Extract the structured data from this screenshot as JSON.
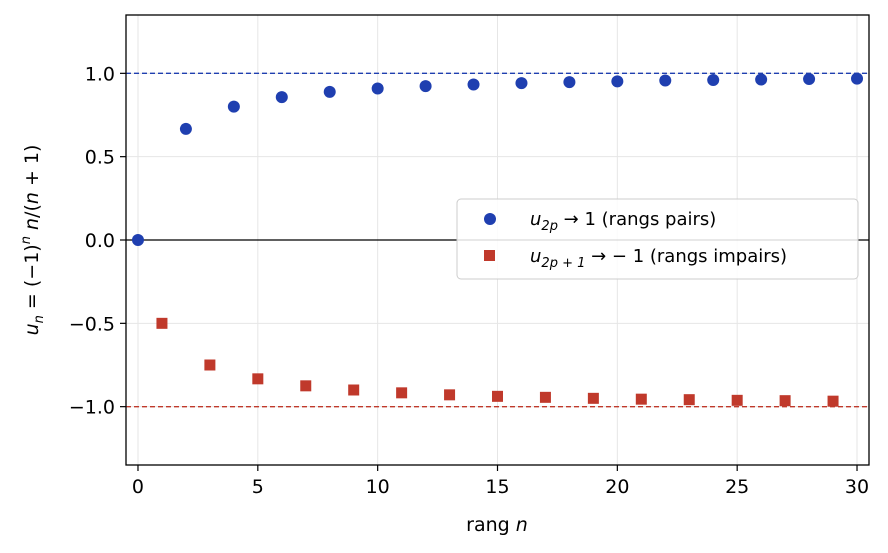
{
  "chart_data": {
    "type": "scatter",
    "xlabel": "rang n",
    "ylabel": "u_n = (−1)^n n/(n+1)",
    "xlim": [
      -0.5,
      30.5
    ],
    "ylim": [
      -1.35,
      1.35
    ],
    "xticks": [
      0,
      5,
      10,
      15,
      20,
      25,
      30
    ],
    "xtick_labels": [
      "0",
      "5",
      "10",
      "15",
      "20",
      "25",
      "30"
    ],
    "yticks": [
      -1.0,
      -0.5,
      0.0,
      0.5,
      1.0
    ],
    "ytick_labels": [
      "−1.0",
      "−0.5",
      "0.0",
      "0.5",
      "1.0"
    ],
    "grid": true,
    "legend_position": "right",
    "series": [
      {
        "name": "u_2p → 1 (rangs pairs)",
        "marker": "circle",
        "color": "#1f3fb0",
        "x": [
          0,
          2,
          4,
          6,
          8,
          10,
          12,
          14,
          16,
          18,
          20,
          22,
          24,
          26,
          28,
          30
        ],
        "y": [
          0.0,
          0.667,
          0.8,
          0.857,
          0.889,
          0.909,
          0.923,
          0.933,
          0.941,
          0.947,
          0.952,
          0.957,
          0.96,
          0.963,
          0.966,
          0.968
        ]
      },
      {
        "name": "u_2p+1 → −1 (rangs impairs)",
        "marker": "square",
        "color": "#c0392b",
        "x": [
          1,
          3,
          5,
          7,
          9,
          11,
          13,
          15,
          17,
          19,
          21,
          23,
          25,
          27,
          29
        ],
        "y": [
          -0.5,
          -0.75,
          -0.833,
          -0.875,
          -0.9,
          -0.917,
          -0.929,
          -0.938,
          -0.944,
          -0.95,
          -0.955,
          -0.958,
          -0.962,
          -0.964,
          -0.967
        ]
      }
    ],
    "reference_lines": [
      {
        "y": 1.0,
        "color": "#1f3fb0",
        "style": "dashed"
      },
      {
        "y": -1.0,
        "color": "#c0392b",
        "style": "dashed"
      },
      {
        "y": 0.0,
        "color": "#000000",
        "style": "solid"
      }
    ],
    "legend": [
      {
        "sub_base": "u",
        "sub": "2p",
        "rest": " → 1 (rangs pairs)"
      },
      {
        "sub_base": "u",
        "sub": "2p + 1",
        "rest": " → − 1 (rangs impairs)"
      }
    ]
  }
}
